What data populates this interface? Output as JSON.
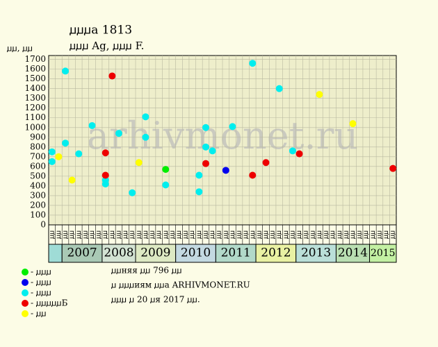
{
  "chart_data": {
    "type": "scatter",
    "title": "ꙡꙡꙡа 1813",
    "subtitle": "ꙡꙡꙡ Ag, ꙡꙡꙡ F.",
    "y_label": "ꙡꙡ, ꙡꙡ",
    "watermark": "arhivmonet.ru",
    "ylim": [
      0,
      1740
    ],
    "yticks": [
      0,
      100,
      200,
      300,
      400,
      500,
      600,
      700,
      800,
      900,
      1000,
      1100,
      1200,
      1300,
      1400,
      1500,
      1600,
      1700
    ],
    "grid": true,
    "categories": [
      "ꙡꙡ",
      "ꙡꙡ",
      "ꙡꙡ",
      "ꙡꙡ",
      "ꙡꙡ",
      "ꙡꙡ",
      "ꙡꙡ",
      "ꙡꙡ",
      "ꙡꙡ",
      "ꙡꙡ",
      "ꙡꙡ",
      "ꙡꙡ",
      "ꙡꙡ",
      "ꙡꙡ",
      "ꙡꙡ",
      "ꙡꙡ",
      "ꙡꙡ",
      "ꙡꙡ",
      "ꙡꙡ",
      "ꙡꙡ",
      "ꙡꙡ",
      "ꙡꙡ",
      "ꙡꙡ",
      "ꙡꙡ",
      "ꙡꙡ",
      "ꙡꙡ",
      "ꙡꙡ",
      "ꙡꙡ",
      "ꙡꙡ",
      "ꙡꙡ",
      "ꙡꙡ",
      "ꙡꙡ",
      "ꙡꙡ",
      "ꙡꙡ",
      "ꙡꙡ",
      "ꙡꙡ",
      "ꙡꙡ",
      "ꙡꙡ",
      "ꙡꙡ",
      "ꙡꙡ",
      "ꙡꙡ",
      "ꙡꙡ",
      "ꙡꙡ",
      "ꙡꙡ",
      "ꙡꙡ",
      "ꙡꙡ",
      "ꙡꙡ",
      "ꙡꙡ",
      "ꙡꙡ",
      "ꙡꙡ",
      "ꙡꙡ",
      "ꙡꙡ"
    ],
    "years": [
      {
        "label": null,
        "span": 2,
        "color": "#9fdcd6"
      },
      {
        "label": "2007",
        "span": 6,
        "color": "#a9c9b5"
      },
      {
        "label": "2008",
        "span": 5,
        "color": "#d3e3d3"
      },
      {
        "label": "2009",
        "span": 6,
        "color": "#dde9c3"
      },
      {
        "label": "2010",
        "span": 6,
        "color": "#c3d9e1"
      },
      {
        "label": "2011",
        "span": 6,
        "color": "#b2d9c9"
      },
      {
        "label": "2012",
        "span": 6,
        "color": "#e9f1a3"
      },
      {
        "label": "2013",
        "span": 6,
        "color": "#badfd8"
      },
      {
        "label": "2014",
        "span": 5,
        "color": "#badfb2"
      },
      {
        "label": "2015",
        "span": 4,
        "color": "#c3f0a3"
      }
    ],
    "series": [
      {
        "name": "- ꙡꙡꙡ",
        "color": "#00ee00",
        "x": [
          17
        ],
        "values": [
          570
        ]
      },
      {
        "name": "- ꙡꙡꙡ",
        "color": "#0000ee",
        "x": [
          26
        ],
        "values": [
          560
        ]
      },
      {
        "name": "- ꙡꙡꙡ",
        "color": "#00eeee",
        "x": [
          0,
          0,
          2,
          2,
          4,
          6,
          8,
          8,
          10,
          12,
          14,
          14,
          17,
          22,
          22,
          23,
          23,
          24,
          27,
          30,
          34,
          36
        ],
        "values": [
          650,
          750,
          1580,
          840,
          730,
          1020,
          460,
          420,
          940,
          330,
          1110,
          900,
          410,
          510,
          340,
          1000,
          800,
          760,
          1010,
          1660,
          1400,
          760
        ]
      },
      {
        "name": "- ꙡꙡꙡꙡꙡБ",
        "color": "#ee0000",
        "x": [
          8,
          8,
          9,
          23,
          30,
          32,
          37,
          51
        ],
        "values": [
          740,
          510,
          1530,
          630,
          510,
          640,
          730,
          580
        ]
      },
      {
        "name": "- ꙡꙡ",
        "color": "#ffff00",
        "x": [
          1,
          3,
          13,
          40,
          45
        ],
        "values": [
          700,
          460,
          640,
          1340,
          1040
        ]
      }
    ],
    "notes": [
      "ꙡꙡняя ꙡꙡ 796 ꙡꙡ",
      "ꙡ ꙡꙡꙡиям ꙡꙡа ARHIVMONET.RU",
      "ꙡꙡꙡ ꙡ 20 ꙡя 2017 ꙡꙡ."
    ]
  }
}
